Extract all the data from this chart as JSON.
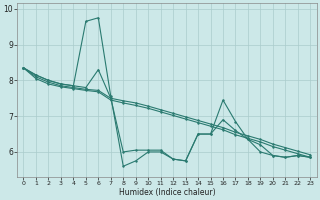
{
  "xlabel": "Humidex (Indice chaleur)",
  "bg_color": "#cce8e8",
  "grid_color": "#aacccc",
  "line_color": "#2a7a70",
  "xlim": [
    -0.5,
    23.5
  ],
  "ylim": [
    5.3,
    10.15
  ],
  "yticks": [
    6,
    7,
    8,
    9,
    10
  ],
  "xticks": [
    0,
    1,
    2,
    3,
    4,
    5,
    6,
    7,
    8,
    9,
    10,
    11,
    12,
    13,
    14,
    15,
    16,
    17,
    18,
    19,
    20,
    21,
    22,
    23
  ],
  "line1_x": [
    0,
    1,
    2,
    3,
    4,
    5,
    6,
    7,
    8,
    9,
    10,
    11,
    12,
    13,
    14,
    15,
    16,
    17,
    18,
    19,
    20,
    21,
    22,
    23
  ],
  "line1_y": [
    8.35,
    8.15,
    8.0,
    7.9,
    7.85,
    9.65,
    9.75,
    7.55,
    5.6,
    5.75,
    6.0,
    6.0,
    5.8,
    5.75,
    6.5,
    6.5,
    7.45,
    6.85,
    6.35,
    6.2,
    5.9,
    5.85,
    5.9,
    5.85
  ],
  "line2_x": [
    0,
    1,
    2,
    3,
    4,
    5,
    6,
    7,
    8,
    9,
    10,
    11,
    12,
    13,
    14,
    15,
    16,
    17,
    18,
    19,
    20,
    21,
    22,
    23
  ],
  "line2_y": [
    8.35,
    8.15,
    8.0,
    7.9,
    7.85,
    7.8,
    8.3,
    7.5,
    6.0,
    6.05,
    6.05,
    6.05,
    5.8,
    5.75,
    6.5,
    6.5,
    6.9,
    6.6,
    6.35,
    6.0,
    5.9,
    5.85,
    5.9,
    5.85
  ],
  "line3_x": [
    0,
    1,
    2,
    3,
    4,
    5,
    6,
    7,
    8,
    9,
    10,
    11,
    12,
    13,
    14,
    15,
    16,
    17,
    18,
    19,
    20,
    21,
    22,
    23
  ],
  "line3_y": [
    8.35,
    8.1,
    7.95,
    7.85,
    7.8,
    7.75,
    7.72,
    7.5,
    7.43,
    7.37,
    7.28,
    7.18,
    7.08,
    6.98,
    6.88,
    6.78,
    6.68,
    6.55,
    6.45,
    6.35,
    6.22,
    6.12,
    6.02,
    5.92
  ],
  "line4_x": [
    0,
    1,
    2,
    3,
    4,
    5,
    6,
    7,
    8,
    9,
    10,
    11,
    12,
    13,
    14,
    15,
    16,
    17,
    18,
    19,
    20,
    21,
    22,
    23
  ],
  "line4_y": [
    8.35,
    8.05,
    7.9,
    7.82,
    7.77,
    7.72,
    7.68,
    7.45,
    7.37,
    7.3,
    7.22,
    7.12,
    7.02,
    6.92,
    6.82,
    6.72,
    6.62,
    6.48,
    6.38,
    6.28,
    6.15,
    6.05,
    5.95,
    5.85
  ]
}
